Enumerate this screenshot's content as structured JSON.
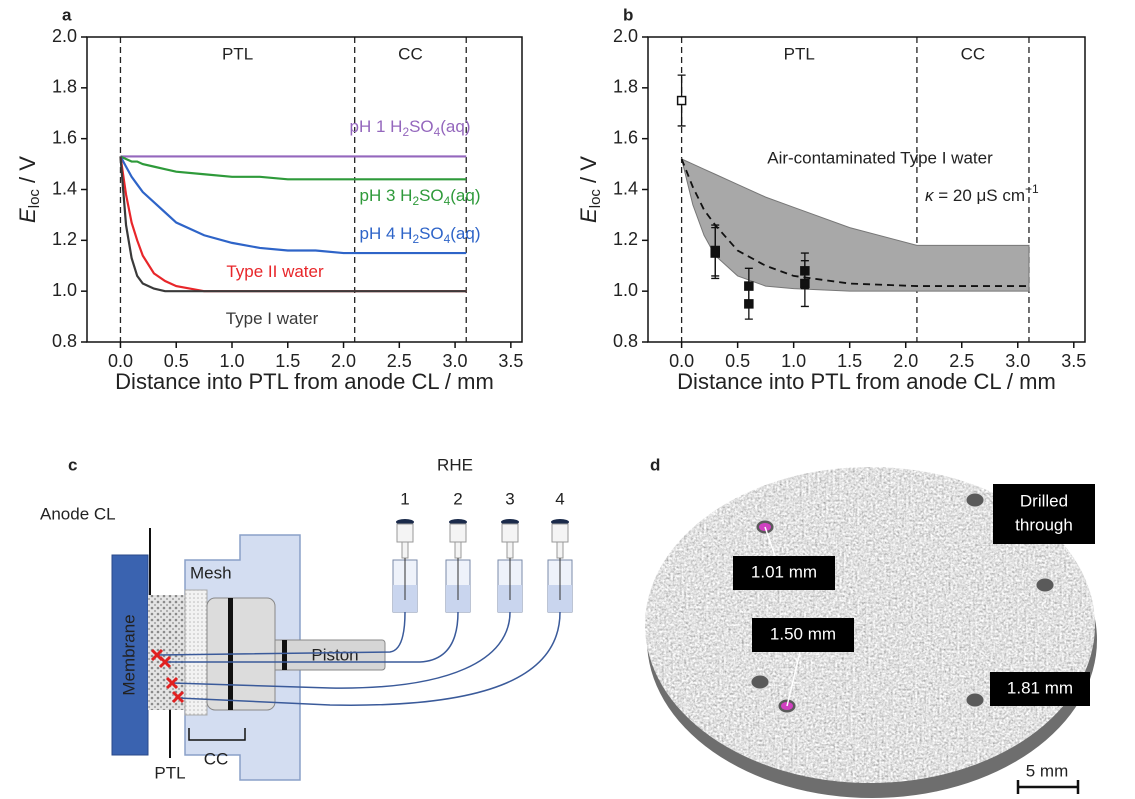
{
  "chart_data": [
    {
      "type": "line",
      "panel_label": "a",
      "xlabel": "Distance into PTL from anode CL / mm",
      "ylabel": [
        "E",
        "loc",
        " / V"
      ],
      "xlim": [
        -0.3,
        3.6
      ],
      "ylim": [
        0.8,
        2.0
      ],
      "xticks": [
        {
          "value": 0,
          "label": "0.0"
        },
        0.5,
        {
          "value": 1,
          "label": "1.0"
        },
        1.5,
        {
          "value": 2,
          "label": "2.0"
        },
        2.5,
        {
          "value": 3,
          "label": "3.0"
        },
        3.5
      ],
      "yticks": [
        0.8,
        {
          "value": 1,
          "label": "1.0"
        },
        1.2,
        1.4,
        1.6,
        1.8,
        {
          "value": 2,
          "label": "2.0"
        }
      ],
      "regions": [
        {
          "label": "PTL",
          "start": 0,
          "end": 2.1
        },
        {
          "label": "CC",
          "start": 2.1,
          "end": 3.1
        }
      ],
      "x": [
        0,
        0.05,
        0.1,
        0.15,
        0.2,
        0.3,
        0.4,
        0.5,
        0.75,
        1.0,
        1.25,
        1.5,
        1.75,
        2.0,
        2.1,
        2.5,
        3.1
      ],
      "series": [
        {
          "name": "pH 1 H2SO4(aq)",
          "color": "#9467bd",
          "values": [
            1.53,
            1.53,
            1.53,
            1.53,
            1.53,
            1.53,
            1.53,
            1.53,
            1.53,
            1.53,
            1.53,
            1.53,
            1.53,
            1.53,
            1.53,
            1.53,
            1.53
          ]
        },
        {
          "name": "pH 3 H2SO4(aq)",
          "color": "#2e9a3a",
          "values": [
            1.53,
            1.52,
            1.51,
            1.51,
            1.5,
            1.49,
            1.48,
            1.47,
            1.46,
            1.45,
            1.45,
            1.44,
            1.44,
            1.44,
            1.44,
            1.44,
            1.44
          ]
        },
        {
          "name": "pH 4 H2SO4(aq)",
          "color": "#2e64c8",
          "values": [
            1.53,
            1.49,
            1.45,
            1.42,
            1.39,
            1.35,
            1.31,
            1.27,
            1.22,
            1.19,
            1.17,
            1.16,
            1.16,
            1.15,
            1.15,
            1.15,
            1.15
          ]
        },
        {
          "name": "Type II water",
          "color": "#e8262a",
          "values": [
            1.53,
            1.38,
            1.27,
            1.2,
            1.14,
            1.07,
            1.04,
            1.02,
            1.0,
            1.0,
            1.0,
            1.0,
            1.0,
            1.0,
            1.0,
            1.0,
            1.0
          ]
        },
        {
          "name": "Type I water",
          "color": "#3a3a3a",
          "values": [
            1.53,
            1.26,
            1.13,
            1.06,
            1.03,
            1.01,
            1.0,
            1.0,
            1.0,
            1.0,
            1.0,
            1.0,
            1.0,
            1.0,
            1.0,
            1.0,
            1.0
          ]
        }
      ]
    },
    {
      "type": "scatter",
      "panel_label": "b",
      "xlabel": "Distance into PTL from anode CL / mm",
      "ylabel": [
        "E",
        "loc",
        " / V"
      ],
      "xlim": [
        -0.3,
        3.6
      ],
      "ylim": [
        0.8,
        2.0
      ],
      "xticks": [
        {
          "value": 0,
          "label": "0.0"
        },
        0.5,
        {
          "value": 1,
          "label": "1.0"
        },
        1.5,
        {
          "value": 2,
          "label": "2.0"
        },
        2.5,
        {
          "value": 3,
          "label": "3.0"
        },
        3.5
      ],
      "yticks": [
        0.8,
        {
          "value": 1,
          "label": "1.0"
        },
        1.2,
        1.4,
        1.6,
        1.8,
        {
          "value": 2,
          "label": "2.0"
        }
      ],
      "regions": [
        {
          "label": "PTL",
          "start": 0,
          "end": 2.1
        },
        {
          "label": "CC",
          "start": 2.1,
          "end": 3.1
        }
      ],
      "annotation": "Air-contaminated Type I water",
      "kappa": [
        "κ",
        " = 20 μS cm",
        "−1"
      ],
      "band": {
        "color": "#a8a8a8",
        "x": [
          0,
          0.1,
          0.2,
          0.3,
          0.5,
          0.75,
          1.0,
          1.5,
          2.1,
          3.1
        ],
        "upper": [
          1.52,
          1.5,
          1.48,
          1.46,
          1.42,
          1.37,
          1.33,
          1.25,
          1.18,
          1.18
        ],
        "lower": [
          1.52,
          1.34,
          1.22,
          1.14,
          1.06,
          1.02,
          1.01,
          1.0,
          1.0,
          1.0
        ]
      },
      "model": {
        "color": "#111111",
        "x": [
          0,
          0.1,
          0.2,
          0.3,
          0.5,
          0.75,
          1.0,
          1.5,
          2.1,
          3.1
        ],
        "values": [
          1.52,
          1.41,
          1.32,
          1.26,
          1.16,
          1.1,
          1.06,
          1.03,
          1.02,
          1.02
        ]
      },
      "points": {
        "color": "#111111",
        "x": [
          0,
          0.3,
          0.3,
          0.6,
          0.6,
          1.1,
          1.1
        ],
        "y": [
          1.75,
          1.16,
          1.15,
          1.02,
          0.95,
          1.08,
          1.03
        ],
        "error": [
          0.1,
          0.1,
          0.1,
          0.07,
          0.06,
          0.07,
          0.09
        ]
      }
    }
  ],
  "diagram": {
    "panel_label": "c",
    "rhe": "RHE",
    "electrodes": [
      "1",
      "2",
      "3",
      "4"
    ],
    "labels": {
      "anode_cl": "Anode CL",
      "mesh": "Mesh",
      "membrane": "Membrane",
      "piston": "Piston",
      "cc": "CC",
      "ptl": "PTL"
    }
  },
  "image": {
    "panel_label": "d",
    "drilled": [
      "Drilled",
      "through"
    ],
    "depths": [
      "1.01 mm",
      "1.50 mm",
      "1.81 mm"
    ],
    "scale_bar": "5 mm"
  }
}
